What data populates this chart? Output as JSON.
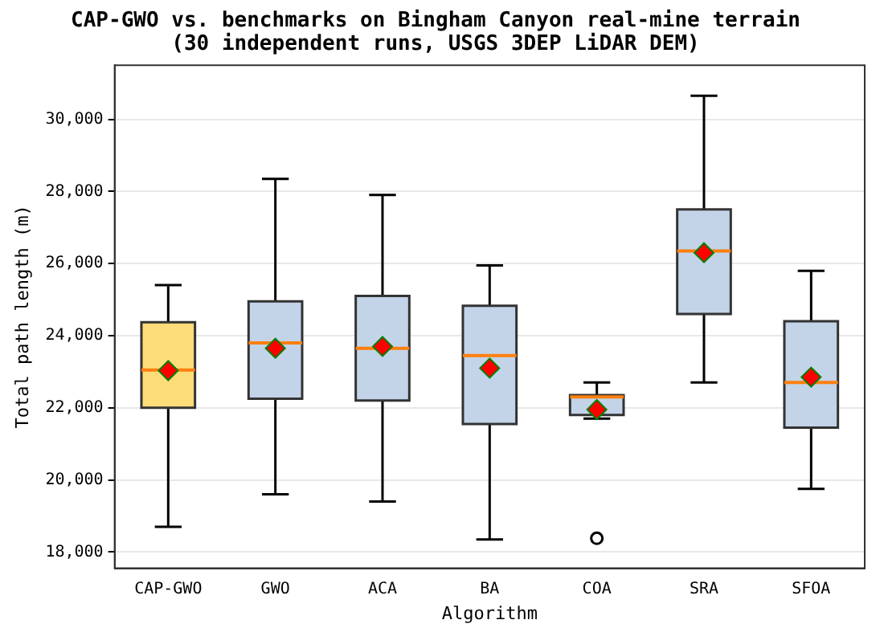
{
  "chart_data": {
    "type": "box",
    "title": "CAP-GWO vs. benchmarks on Bingham Canyon real-mine terrain\n(30 independent runs, USGS 3DEP LiDAR DEM)",
    "xlabel": "Algorithm",
    "ylabel": "Total path length (m)",
    "categories": [
      "CAP-GWO",
      "GWO",
      "ACA",
      "BA",
      "COA",
      "SRA",
      "SFOA"
    ],
    "colors": [
      "#fddc7a",
      "#c3d3e8",
      "#c3d3e8",
      "#c3d3e8",
      "#c3d3e8",
      "#c3d3e8",
      "#c3d3e8"
    ],
    "boxes": [
      {
        "low": 18700,
        "q1": 22000,
        "median": 23050,
        "q3": 24370,
        "high": 25400,
        "mean": 23030
      },
      {
        "low": 19600,
        "q1": 22250,
        "median": 23800,
        "q3": 24950,
        "high": 28350,
        "mean": 23650
      },
      {
        "low": 19400,
        "q1": 22200,
        "median": 23650,
        "q3": 25100,
        "high": 27900,
        "mean": 23700
      },
      {
        "low": 18350,
        "q1": 21550,
        "median": 23450,
        "q3": 24830,
        "high": 25950,
        "mean": 23100
      },
      {
        "low": 21700,
        "q1": 21800,
        "median": 22300,
        "q3": 22350,
        "high": 22700,
        "mean": 21950,
        "outliers": [
          18380
        ]
      },
      {
        "low": 22700,
        "q1": 24600,
        "median": 26350,
        "q3": 27500,
        "high": 30650,
        "mean": 26300
      },
      {
        "low": 19750,
        "q1": 21450,
        "median": 22700,
        "q3": 24400,
        "high": 25800,
        "mean": 22850
      }
    ],
    "ylim": [
      17550,
      31500
    ],
    "yticks": [
      {
        "value": 18000,
        "label": "18,000"
      },
      {
        "value": 20000,
        "label": "20,000"
      },
      {
        "value": 22000,
        "label": "22,000"
      },
      {
        "value": 24000,
        "label": "24,000"
      },
      {
        "value": 26000,
        "label": "26,000"
      },
      {
        "value": 28000,
        "label": "28,000"
      },
      {
        "value": 30000,
        "label": "30,000"
      }
    ],
    "grid": "y",
    "marker": "diamond"
  }
}
